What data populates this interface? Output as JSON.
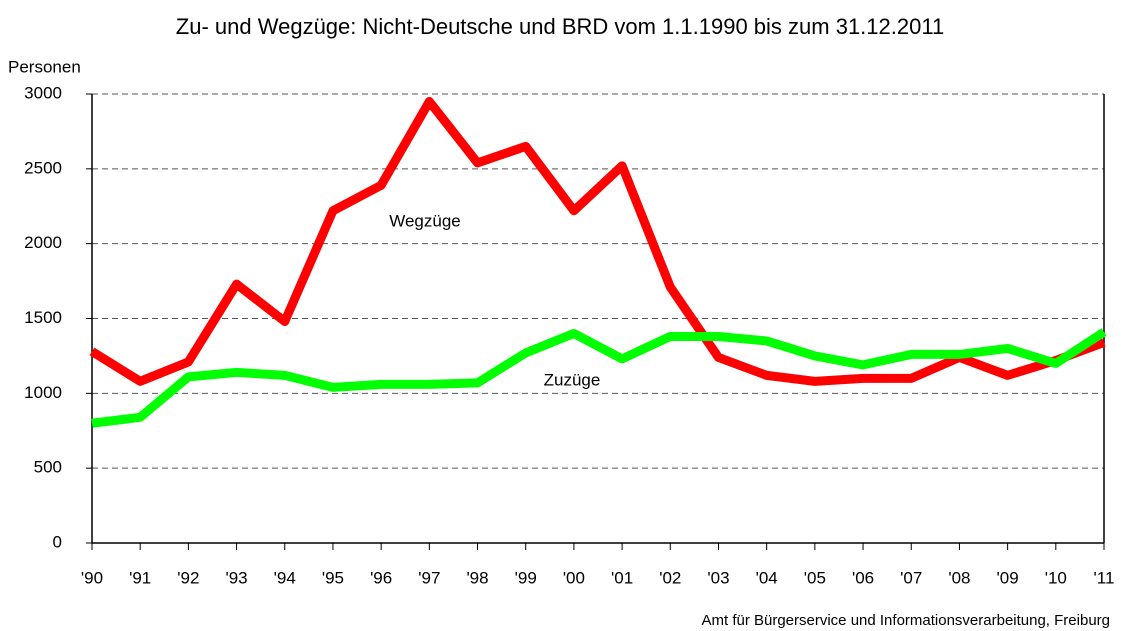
{
  "chart_data": {
    "type": "line",
    "title": "Zu- und Wegzüge: Nicht-Deutsche und BRD vom 1.1.1990 bis zum 31.12.2011",
    "y_label": "Personen",
    "source": "Amt für Bürgerservice und Informationsverarbeitung, Freiburg",
    "categories": [
      "'90",
      "'91",
      "'92",
      "'93",
      "'94",
      "'95",
      "'96",
      "'97",
      "'98",
      "'99",
      "'00",
      "'01",
      "'02",
      "'03",
      "'04",
      "'05",
      "'06",
      "'07",
      "'08",
      "'09",
      "'10",
      "'11"
    ],
    "series": [
      {
        "name": "Wegzüge",
        "color": "#ff0000",
        "values": [
          1280,
          1080,
          1210,
          1730,
          1480,
          2220,
          2390,
          2950,
          2540,
          2650,
          2220,
          2520,
          1710,
          1240,
          1120,
          1080,
          1100,
          1100,
          1240,
          1120,
          1220,
          1340
        ]
      },
      {
        "name": "Zuzüge",
        "color": "#00ff00",
        "values": [
          800,
          840,
          1110,
          1140,
          1120,
          1040,
          1060,
          1060,
          1070,
          1270,
          1400,
          1230,
          1380,
          1380,
          1350,
          1250,
          1190,
          1260,
          1260,
          1300,
          1200,
          1410
        ]
      }
    ],
    "ylim": [
      0,
      3000
    ],
    "yticks": [
      0,
      500,
      1000,
      1500,
      2000,
      2500,
      3000
    ],
    "grid": true
  }
}
